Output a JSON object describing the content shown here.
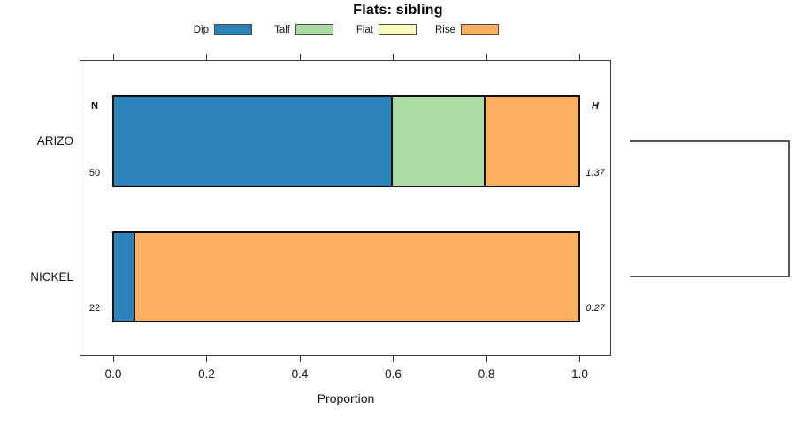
{
  "chart_data": {
    "type": "bar",
    "variant": "horizontal-stacked-proportion",
    "title": "Flats: sibling",
    "xlabel": "Proportion",
    "xlim": [
      0,
      1
    ],
    "grid": false,
    "legend_position": "top",
    "x_tick_values": [
      0,
      0.2,
      0.4,
      0.6,
      0.8,
      1
    ],
    "x_tick_labels": [
      "0.0",
      "0.2",
      "0.4",
      "0.6",
      "0.8",
      "1.0"
    ],
    "categories_header": {
      "n": "N",
      "h": "H"
    },
    "legend": [
      {
        "label": "Dip",
        "color": "#2b83ba"
      },
      {
        "label": "Talf",
        "color": "#abdda4"
      },
      {
        "label": "Flat",
        "color": "#ffffbf"
      },
      {
        "label": "Rise",
        "color": "#fdae61"
      }
    ],
    "rows": [
      {
        "category": "ARIZO",
        "n": "50",
        "h": "1.37",
        "segments": [
          {
            "name": "Dip",
            "value": 0.6
          },
          {
            "name": "Talf",
            "value": 0.2
          },
          {
            "name": "Flat",
            "value": 0
          },
          {
            "name": "Rise",
            "value": 0.2
          }
        ]
      },
      {
        "category": "NICKEL",
        "n": "22",
        "h": "0.27",
        "segments": [
          {
            "name": "Dip",
            "value": 0.045
          },
          {
            "name": "Talf",
            "value": 0
          },
          {
            "name": "Flat",
            "value": 0
          },
          {
            "name": "Rise",
            "value": 0.955
          }
        ]
      }
    ],
    "cluster_bracket": {
      "joins": [
        "ARIZO",
        "NICKEL"
      ]
    },
    "colors": {
      "bar_border": "#111111",
      "box_border": "#3c3c3c",
      "bracket_line": "#565656"
    }
  }
}
